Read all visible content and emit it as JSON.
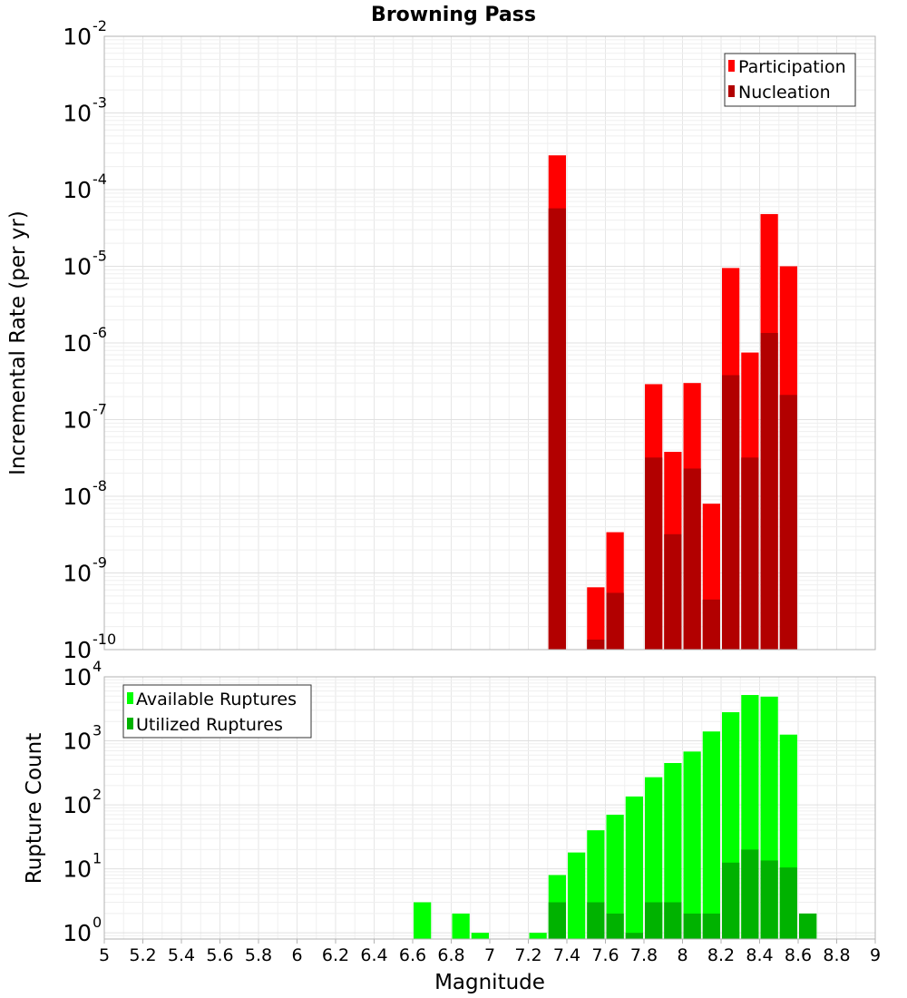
{
  "chart_data": [
    {
      "type": "bar",
      "title": "Browning Pass",
      "xlabel": "",
      "ylabel": "Incremental Rate (per yr)",
      "y_scale": "log",
      "ylim": [
        1e-10,
        0.01
      ],
      "xlim": [
        5,
        9
      ],
      "grid": true,
      "legend_position": "top-right",
      "y_ticks": [
        {
          "base": "10",
          "exp": "-10",
          "value": 1e-10
        },
        {
          "base": "10",
          "exp": "-9",
          "value": 1e-09
        },
        {
          "base": "10",
          "exp": "-8",
          "value": 1e-08
        },
        {
          "base": "10",
          "exp": "-7",
          "value": 1e-07
        },
        {
          "base": "10",
          "exp": "-6",
          "value": 1e-06
        },
        {
          "base": "10",
          "exp": "-5",
          "value": 1e-05
        },
        {
          "base": "10",
          "exp": "-4",
          "value": 0.0001
        },
        {
          "base": "10",
          "exp": "-3",
          "value": 0.001
        },
        {
          "base": "10",
          "exp": "-2",
          "value": 0.01
        }
      ],
      "bar_width": 0.1,
      "series": [
        {
          "name": "Participation",
          "color": "#ff0000",
          "points": [
            {
              "x": 7.35,
              "y": 0.00028
            },
            {
              "x": 7.55,
              "y": 6.5e-10
            },
            {
              "x": 7.65,
              "y": 3.4e-09
            },
            {
              "x": 7.85,
              "y": 2.9e-07
            },
            {
              "x": 7.95,
              "y": 3.8e-08
            },
            {
              "x": 8.05,
              "y": 3e-07
            },
            {
              "x": 8.15,
              "y": 8e-09
            },
            {
              "x": 8.25,
              "y": 9.5e-06
            },
            {
              "x": 8.35,
              "y": 7.5e-07
            },
            {
              "x": 8.45,
              "y": 4.8e-05
            },
            {
              "x": 8.55,
              "y": 1e-05
            }
          ]
        },
        {
          "name": "Nucleation",
          "color": "#b20000",
          "points": [
            {
              "x": 7.35,
              "y": 5.7e-05
            },
            {
              "x": 7.55,
              "y": 1.35e-10
            },
            {
              "x": 7.65,
              "y": 5.5e-10
            },
            {
              "x": 7.85,
              "y": 3.2e-08
            },
            {
              "x": 7.95,
              "y": 3.2e-09
            },
            {
              "x": 8.05,
              "y": 2.3e-08
            },
            {
              "x": 8.15,
              "y": 4.5e-10
            },
            {
              "x": 8.25,
              "y": 3.8e-07
            },
            {
              "x": 8.35,
              "y": 3.2e-08
            },
            {
              "x": 8.45,
              "y": 1.35e-06
            },
            {
              "x": 8.55,
              "y": 2.1e-07
            }
          ]
        }
      ]
    },
    {
      "type": "bar",
      "title": "",
      "xlabel": "Magnitude",
      "ylabel": "Rupture Count",
      "y_scale": "log",
      "ylim": [
        0.8,
        10000.0
      ],
      "xlim": [
        5,
        9
      ],
      "grid": true,
      "legend_position": "top-left",
      "y_ticks": [
        {
          "base": "10",
          "exp": "0",
          "value": 1
        },
        {
          "base": "10",
          "exp": "1",
          "value": 10
        },
        {
          "base": "10",
          "exp": "2",
          "value": 100
        },
        {
          "base": "10",
          "exp": "3",
          "value": 1000
        },
        {
          "base": "10",
          "exp": "4",
          "value": 10000
        }
      ],
      "x_ticks": [
        "5",
        "5.2",
        "5.4",
        "5.6",
        "5.8",
        "6",
        "6.2",
        "6.4",
        "6.6",
        "6.8",
        "7",
        "7.2",
        "7.4",
        "7.6",
        "7.8",
        "8",
        "8.2",
        "8.4",
        "8.6",
        "8.8",
        "9"
      ],
      "bar_width": 0.1,
      "series": [
        {
          "name": "Available Ruptures",
          "color": "#00ff00",
          "points": [
            {
              "x": 6.65,
              "y": 3
            },
            {
              "x": 6.85,
              "y": 2
            },
            {
              "x": 6.95,
              "y": 1
            },
            {
              "x": 7.25,
              "y": 1
            },
            {
              "x": 7.35,
              "y": 8
            },
            {
              "x": 7.45,
              "y": 18
            },
            {
              "x": 7.55,
              "y": 40
            },
            {
              "x": 7.65,
              "y": 70
            },
            {
              "x": 7.75,
              "y": 135
            },
            {
              "x": 7.85,
              "y": 270
            },
            {
              "x": 7.95,
              "y": 450
            },
            {
              "x": 8.05,
              "y": 680
            },
            {
              "x": 8.15,
              "y": 1400
            },
            {
              "x": 8.25,
              "y": 2800
            },
            {
              "x": 8.35,
              "y": 5200
            },
            {
              "x": 8.45,
              "y": 4900
            },
            {
              "x": 8.55,
              "y": 1250
            },
            {
              "x": 8.65,
              "y": 2
            }
          ]
        },
        {
          "name": "Utilized Ruptures",
          "color": "#00b200",
          "points": [
            {
              "x": 7.35,
              "y": 3
            },
            {
              "x": 7.55,
              "y": 3
            },
            {
              "x": 7.65,
              "y": 2
            },
            {
              "x": 7.75,
              "y": 1
            },
            {
              "x": 7.85,
              "y": 3
            },
            {
              "x": 7.95,
              "y": 3
            },
            {
              "x": 8.05,
              "y": 2
            },
            {
              "x": 8.15,
              "y": 2
            },
            {
              "x": 8.25,
              "y": 12.5
            },
            {
              "x": 8.35,
              "y": 20
            },
            {
              "x": 8.45,
              "y": 13.5
            },
            {
              "x": 8.55,
              "y": 10.5
            },
            {
              "x": 8.65,
              "y": 2
            }
          ]
        }
      ]
    }
  ]
}
